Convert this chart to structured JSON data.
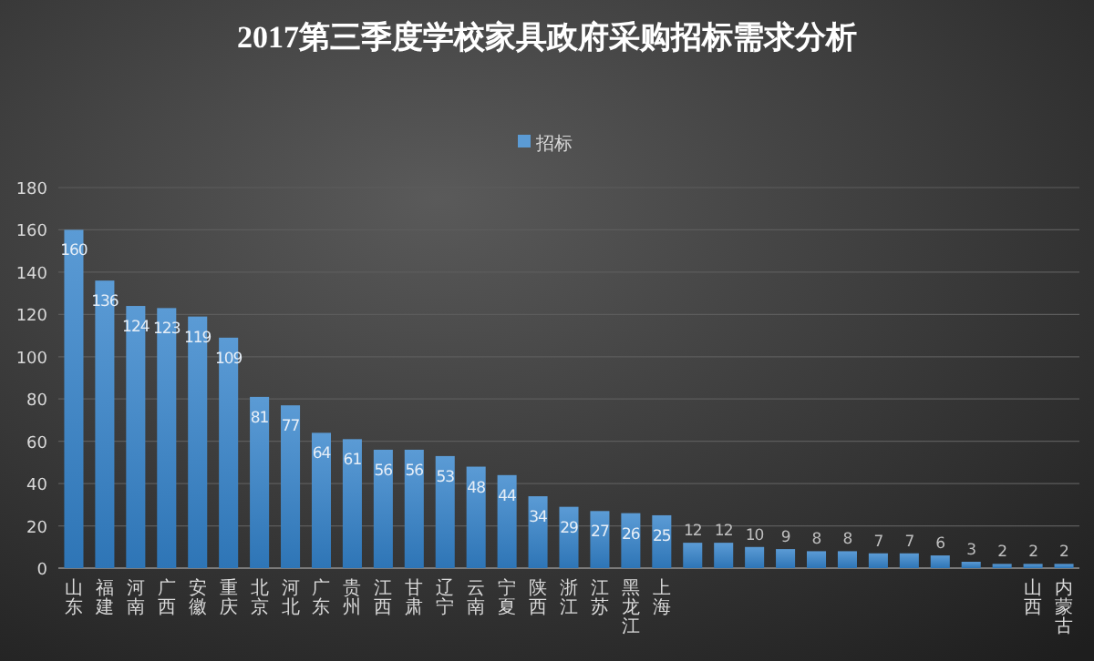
{
  "chart_data": {
    "type": "bar",
    "title": "2017第三季度学校家具政府采购招标需求分析",
    "categories": [
      "山东",
      "福建",
      "河南",
      "广西",
      "安徽",
      "重庆",
      "北京",
      "河北",
      "广东",
      "贵州",
      "江西",
      "甘肃",
      "辽宁",
      "云南",
      "宁夏",
      "陕西",
      "浙江",
      "江苏",
      "黑龙江",
      "上海",
      null,
      null,
      null,
      null,
      null,
      null,
      null,
      null,
      null,
      null,
      null,
      "山西",
      "内蒙古"
    ],
    "series": [
      {
        "name": "招标",
        "color": "#5b9bd5",
        "values": [
          160,
          136,
          124,
          123,
          119,
          109,
          81,
          77,
          64,
          61,
          56,
          56,
          53,
          48,
          44,
          34,
          29,
          27,
          26,
          25,
          12,
          12,
          10,
          9,
          8,
          8,
          7,
          7,
          6,
          3,
          2,
          2,
          2
        ]
      }
    ],
    "ylim": [
      0,
      180
    ],
    "yticks": [
      0,
      20,
      40,
      60,
      80,
      100,
      120,
      140,
      160,
      180
    ],
    "grid": "y",
    "legend": "top",
    "data_labels": true
  }
}
